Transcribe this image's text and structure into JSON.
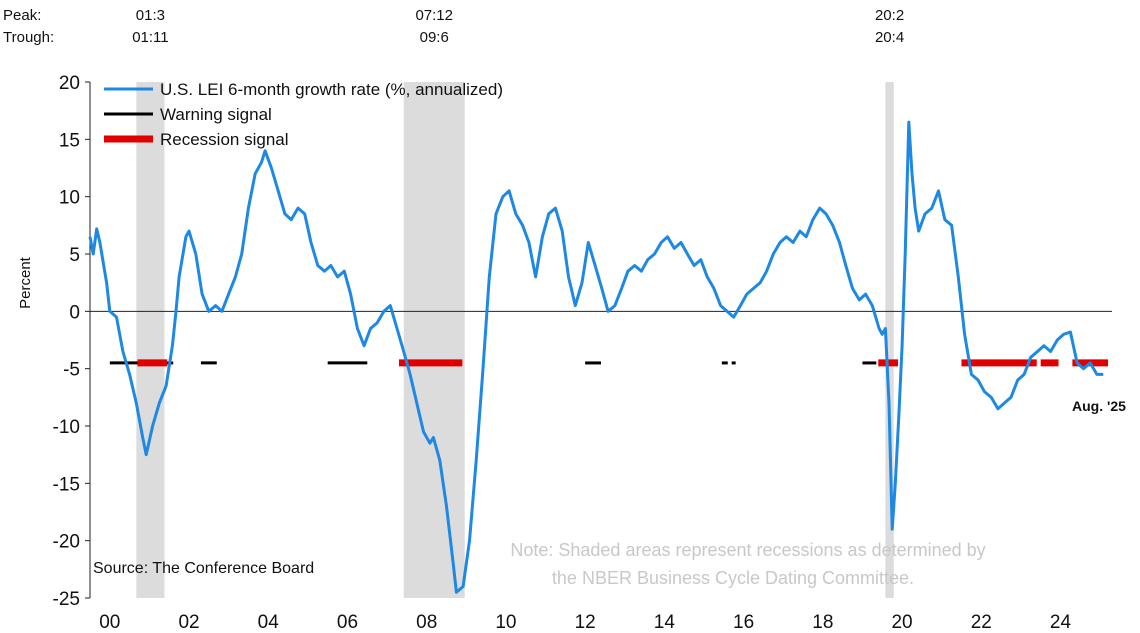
{
  "chart_data": {
    "type": "line",
    "ylabel": "Percent",
    "ylim": [
      -25,
      20
    ],
    "yticks": [
      20,
      15,
      10,
      5,
      0,
      -5,
      -10,
      -15,
      -20,
      -25
    ],
    "xlim": [
      2000.0,
      2025.8
    ],
    "xticks": [
      {
        "year": 2000.5,
        "label": "00"
      },
      {
        "year": 2002.5,
        "label": "02"
      },
      {
        "year": 2004.5,
        "label": "04"
      },
      {
        "year": 2006.5,
        "label": "06"
      },
      {
        "year": 2008.5,
        "label": "08"
      },
      {
        "year": 2010.5,
        "label": "10"
      },
      {
        "year": 2012.5,
        "label": "12"
      },
      {
        "year": 2014.5,
        "label": "14"
      },
      {
        "year": 2016.5,
        "label": "16"
      },
      {
        "year": 2018.5,
        "label": "18"
      },
      {
        "year": 2020.5,
        "label": "20"
      },
      {
        "year": 2022.5,
        "label": "22"
      },
      {
        "year": 2024.5,
        "label": "24"
      }
    ],
    "peak_label": "Peak:",
    "trough_label": "Trough:",
    "recessions": [
      {
        "start": 2001.17,
        "end": 2001.88,
        "peak": "01:3",
        "trough": "01:11"
      },
      {
        "start": 2007.92,
        "end": 2009.46,
        "peak": "07:12",
        "trough": "09:6"
      },
      {
        "start": 2020.08,
        "end": 2020.29,
        "peak": "20:2",
        "trough": "20:4"
      }
    ],
    "signal_level": -4.5,
    "warning_signals": [
      [
        2000.5,
        2001.2
      ],
      [
        2001.9,
        2002.1
      ],
      [
        2002.8,
        2003.2
      ],
      [
        2006.0,
        2007.0
      ],
      [
        2012.5,
        2012.9
      ],
      [
        2015.95,
        2016.1
      ],
      [
        2016.2,
        2016.3
      ],
      [
        2019.5,
        2019.85
      ]
    ],
    "recession_signals": [
      [
        2001.2,
        2001.95
      ],
      [
        2007.8,
        2009.4
      ],
      [
        2019.9,
        2020.4
      ],
      [
        2022.0,
        2023.9
      ],
      [
        2024.0,
        2024.45
      ],
      [
        2024.8,
        2025.7
      ]
    ],
    "series": [
      {
        "name": "U.S. LEI 6-month growth rate (%, annualized)",
        "color": "#1e88e5",
        "points": [
          [
            2000.0,
            6.5
          ],
          [
            2000.08,
            5.0
          ],
          [
            2000.17,
            7.2
          ],
          [
            2000.25,
            6.0
          ],
          [
            2000.42,
            2.5
          ],
          [
            2000.5,
            0.0
          ],
          [
            2000.67,
            -0.5
          ],
          [
            2000.83,
            -3.5
          ],
          [
            2001.0,
            -5.5
          ],
          [
            2001.17,
            -8.0
          ],
          [
            2001.33,
            -11.0
          ],
          [
            2001.42,
            -12.5
          ],
          [
            2001.58,
            -10.0
          ],
          [
            2001.75,
            -8.0
          ],
          [
            2001.92,
            -6.5
          ],
          [
            2002.08,
            -3.0
          ],
          [
            2002.17,
            0.0
          ],
          [
            2002.25,
            3.0
          ],
          [
            2002.42,
            6.5
          ],
          [
            2002.5,
            7.0
          ],
          [
            2002.67,
            5.0
          ],
          [
            2002.83,
            1.5
          ],
          [
            2003.0,
            0.0
          ],
          [
            2003.17,
            0.5
          ],
          [
            2003.33,
            0.0
          ],
          [
            2003.5,
            1.5
          ],
          [
            2003.67,
            3.0
          ],
          [
            2003.83,
            5.0
          ],
          [
            2004.0,
            9.0
          ],
          [
            2004.17,
            12.0
          ],
          [
            2004.33,
            13.0
          ],
          [
            2004.42,
            14.0
          ],
          [
            2004.58,
            12.5
          ],
          [
            2004.75,
            10.5
          ],
          [
            2004.92,
            8.5
          ],
          [
            2005.08,
            8.0
          ],
          [
            2005.25,
            9.0
          ],
          [
            2005.42,
            8.5
          ],
          [
            2005.58,
            6.0
          ],
          [
            2005.75,
            4.0
          ],
          [
            2005.92,
            3.5
          ],
          [
            2006.08,
            4.0
          ],
          [
            2006.25,
            3.0
          ],
          [
            2006.42,
            3.5
          ],
          [
            2006.58,
            1.5
          ],
          [
            2006.75,
            -1.5
          ],
          [
            2006.92,
            -3.0
          ],
          [
            2007.08,
            -1.5
          ],
          [
            2007.25,
            -1.0
          ],
          [
            2007.42,
            0.0
          ],
          [
            2007.58,
            0.5
          ],
          [
            2007.75,
            -1.5
          ],
          [
            2007.92,
            -3.5
          ],
          [
            2008.08,
            -5.5
          ],
          [
            2008.25,
            -8.0
          ],
          [
            2008.42,
            -10.5
          ],
          [
            2008.58,
            -11.5
          ],
          [
            2008.67,
            -11.0
          ],
          [
            2008.83,
            -13.0
          ],
          [
            2009.0,
            -17.0
          ],
          [
            2009.17,
            -22.0
          ],
          [
            2009.25,
            -24.5
          ],
          [
            2009.42,
            -24.0
          ],
          [
            2009.58,
            -20.0
          ],
          [
            2009.75,
            -13.0
          ],
          [
            2009.92,
            -5.0
          ],
          [
            2010.08,
            3.0
          ],
          [
            2010.25,
            8.5
          ],
          [
            2010.42,
            10.0
          ],
          [
            2010.58,
            10.5
          ],
          [
            2010.75,
            8.5
          ],
          [
            2010.92,
            7.5
          ],
          [
            2011.08,
            6.0
          ],
          [
            2011.25,
            3.0
          ],
          [
            2011.42,
            6.5
          ],
          [
            2011.58,
            8.5
          ],
          [
            2011.75,
            9.0
          ],
          [
            2011.92,
            7.0
          ],
          [
            2012.08,
            3.0
          ],
          [
            2012.25,
            0.5
          ],
          [
            2012.42,
            2.5
          ],
          [
            2012.58,
            6.0
          ],
          [
            2012.75,
            4.0
          ],
          [
            2012.92,
            2.0
          ],
          [
            2013.08,
            0.0
          ],
          [
            2013.25,
            0.5
          ],
          [
            2013.42,
            2.0
          ],
          [
            2013.58,
            3.5
          ],
          [
            2013.75,
            4.0
          ],
          [
            2013.92,
            3.5
          ],
          [
            2014.08,
            4.5
          ],
          [
            2014.25,
            5.0
          ],
          [
            2014.42,
            6.0
          ],
          [
            2014.58,
            6.5
          ],
          [
            2014.75,
            5.5
          ],
          [
            2014.92,
            6.0
          ],
          [
            2015.08,
            5.0
          ],
          [
            2015.25,
            4.0
          ],
          [
            2015.42,
            4.5
          ],
          [
            2015.58,
            3.0
          ],
          [
            2015.75,
            2.0
          ],
          [
            2015.92,
            0.5
          ],
          [
            2016.08,
            0.0
          ],
          [
            2016.25,
            -0.5
          ],
          [
            2016.42,
            0.5
          ],
          [
            2016.58,
            1.5
          ],
          [
            2016.75,
            2.0
          ],
          [
            2016.92,
            2.5
          ],
          [
            2017.08,
            3.5
          ],
          [
            2017.25,
            5.0
          ],
          [
            2017.42,
            6.0
          ],
          [
            2017.58,
            6.5
          ],
          [
            2017.75,
            6.0
          ],
          [
            2017.92,
            7.0
          ],
          [
            2018.08,
            6.5
          ],
          [
            2018.25,
            8.0
          ],
          [
            2018.42,
            9.0
          ],
          [
            2018.58,
            8.5
          ],
          [
            2018.75,
            7.5
          ],
          [
            2018.92,
            6.0
          ],
          [
            2019.08,
            4.0
          ],
          [
            2019.25,
            2.0
          ],
          [
            2019.42,
            1.0
          ],
          [
            2019.58,
            1.5
          ],
          [
            2019.75,
            0.5
          ],
          [
            2019.92,
            -1.5
          ],
          [
            2020.0,
            -2.0
          ],
          [
            2020.08,
            -1.5
          ],
          [
            2020.17,
            -8.0
          ],
          [
            2020.25,
            -19.0
          ],
          [
            2020.33,
            -15.0
          ],
          [
            2020.42,
            -9.0
          ],
          [
            2020.5,
            -3.0
          ],
          [
            2020.58,
            5.0
          ],
          [
            2020.67,
            16.5
          ],
          [
            2020.75,
            12.0
          ],
          [
            2020.83,
            9.0
          ],
          [
            2020.92,
            7.0
          ],
          [
            2021.08,
            8.5
          ],
          [
            2021.25,
            9.0
          ],
          [
            2021.42,
            10.5
          ],
          [
            2021.58,
            8.0
          ],
          [
            2021.75,
            7.5
          ],
          [
            2021.92,
            3.0
          ],
          [
            2022.08,
            -2.0
          ],
          [
            2022.25,
            -5.5
          ],
          [
            2022.42,
            -6.0
          ],
          [
            2022.58,
            -7.0
          ],
          [
            2022.75,
            -7.5
          ],
          [
            2022.92,
            -8.5
          ],
          [
            2023.08,
            -8.0
          ],
          [
            2023.25,
            -7.5
          ],
          [
            2023.42,
            -6.0
          ],
          [
            2023.58,
            -5.5
          ],
          [
            2023.75,
            -4.0
          ],
          [
            2023.92,
            -3.5
          ],
          [
            2024.08,
            -3.0
          ],
          [
            2024.25,
            -3.5
          ],
          [
            2024.42,
            -2.5
          ],
          [
            2024.58,
            -2.0
          ],
          [
            2024.75,
            -1.8
          ],
          [
            2024.92,
            -4.5
          ],
          [
            2025.08,
            -5.0
          ],
          [
            2025.25,
            -4.5
          ],
          [
            2025.42,
            -5.5
          ],
          [
            2025.58,
            -5.5
          ]
        ]
      }
    ],
    "legend": {
      "placement": "top-left",
      "items": [
        {
          "label": "U.S. LEI 6-month growth rate (%, annualized)",
          "kind": "line",
          "color": "#1e88e5"
        },
        {
          "label": "Warning signal",
          "kind": "line",
          "color": "#000000"
        },
        {
          "label": "Recession signal",
          "kind": "line",
          "color": "#e00000"
        }
      ]
    },
    "end_label": "Aug. '25",
    "source": "Source: The Conference Board",
    "note_lines": [
      "Note: Shaded areas represent recessions as determined by",
      "the NBER Business Cycle Dating Committee."
    ]
  }
}
